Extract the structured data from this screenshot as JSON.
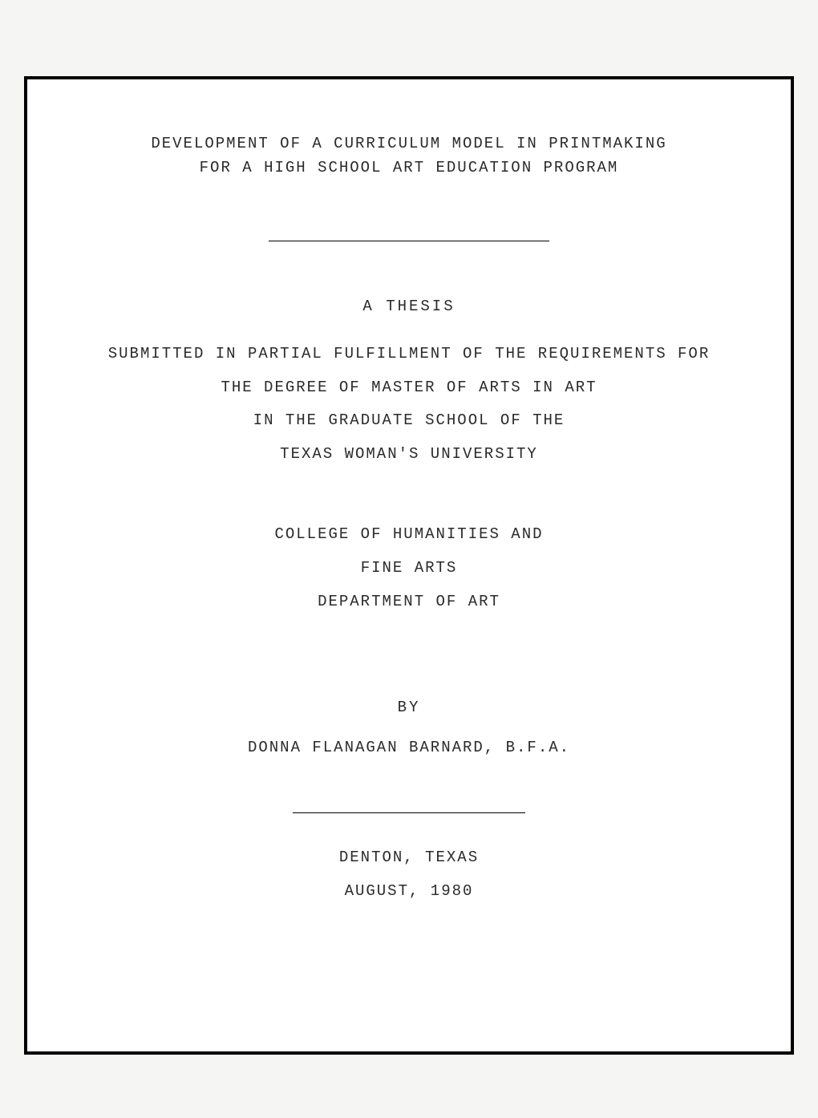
{
  "title": {
    "line1": "DEVELOPMENT OF A CURRICULUM MODEL IN PRINTMAKING",
    "line2": "FOR A HIGH SCHOOL ART EDUCATION PROGRAM"
  },
  "thesis_label": "A THESIS",
  "submission": {
    "line1": "SUBMITTED IN PARTIAL FULFILLMENT OF THE REQUIREMENTS FOR",
    "line2": "THE DEGREE OF MASTER OF ARTS IN ART",
    "line3": "IN THE GRADUATE SCHOOL OF THE",
    "line4": "TEXAS WOMAN'S UNIVERSITY"
  },
  "college": {
    "line1": "COLLEGE OF HUMANITIES AND",
    "line2": "FINE ARTS",
    "line3": "DEPARTMENT OF ART"
  },
  "by_label": "BY",
  "author": "DONNA FLANAGAN BARNARD, B.F.A.",
  "location": {
    "city": "DENTON, TEXAS",
    "date": "AUGUST, 1980"
  },
  "styles": {
    "page_bg": "#f5f5f3",
    "frame_bg": "#ffffff",
    "border_color": "#000000",
    "text_color": "#2a2a2a",
    "font_family": "Courier New",
    "title_fontsize": 19,
    "letter_spacing": 2,
    "border_width": 4,
    "hr_width_1": 350,
    "hr_width_2": 290
  }
}
